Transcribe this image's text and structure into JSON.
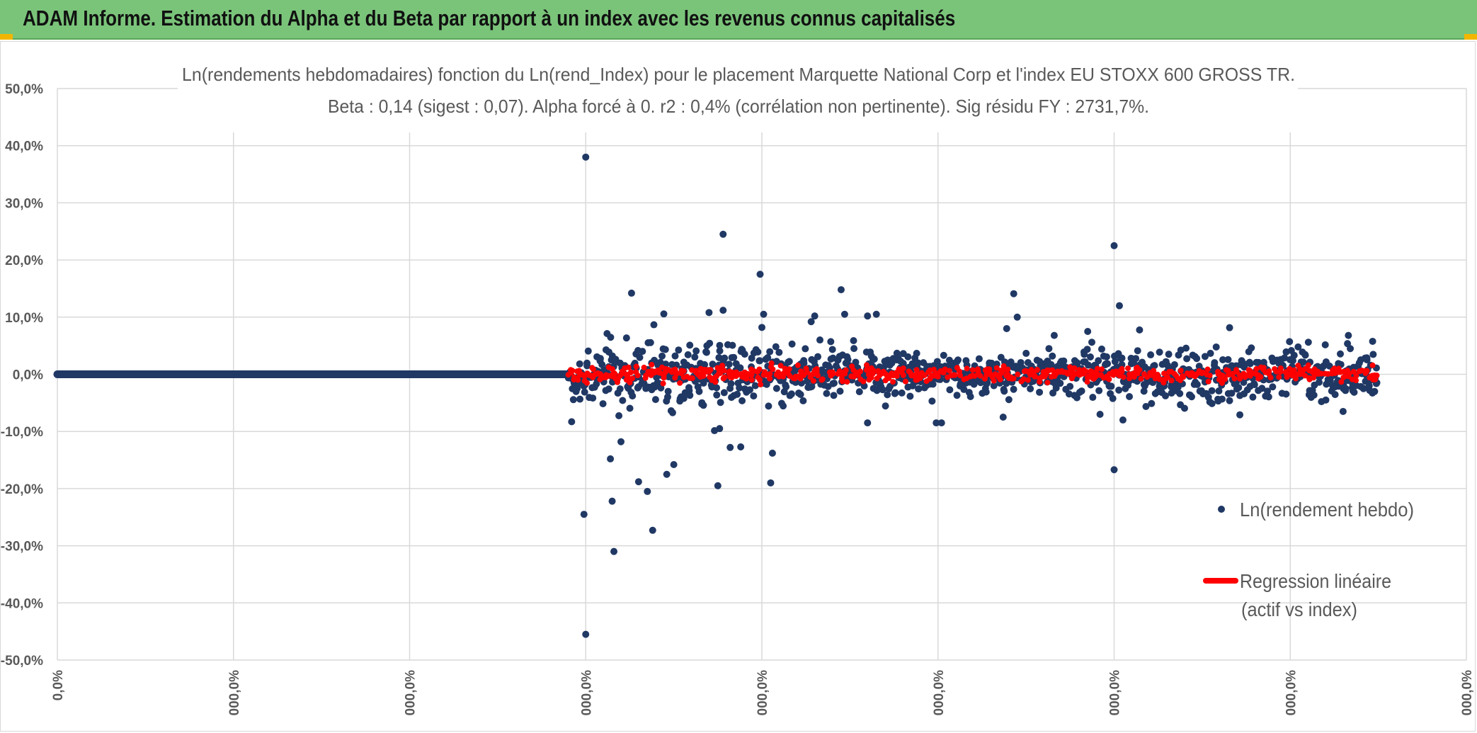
{
  "header": {
    "title": "ADAM Informe. Estimation du Alpha et du Beta par rapport à un index avec les revenus connus capitalisés"
  },
  "colors": {
    "header_bg": "#7ac47a",
    "points": "#203864",
    "regression": "#ff0000",
    "grid": "#d9d9d9",
    "text": "#595959",
    "corner": "#f2b600"
  },
  "chart_data": {
    "type": "scatter",
    "title": "Ln(rendements hebdomadaires) fonction du Ln(rend_Index) pour le placement Marquette National Corp et l'index EU STOXX 600 GROSS TR.",
    "subtitle": "Beta : 0,14 (sigest : 0,07). Alpha forcé à 0. r2 : 0,4% (corrélation non pertinente). Sig résidu FY : 2731,7%.",
    "xlabel": "",
    "ylabel": "",
    "y_ticks": [
      "50,0%",
      "40,0%",
      "30,0%",
      "20,0%",
      "10,0%",
      "0,0%",
      "-10,0%",
      "-20,0%",
      "-30,0%",
      "-40,0%",
      "-50,0%"
    ],
    "ylim": [
      -0.5,
      0.5
    ],
    "x_ticks": [
      "0,0%",
      "000,0%",
      "000,0%",
      "000,0%",
      "000,0%",
      "000,0%",
      "000,0%",
      "000,0%",
      "000,0%"
    ],
    "xlim": [
      0,
      8
    ],
    "grid": true,
    "legend_position": "right",
    "series": [
      {
        "name": "Ln(rendement hebdo)",
        "kind": "scatter",
        "baseline_segment": {
          "x_start": 0,
          "x_end": 2.9,
          "y": 0.0
        },
        "scatter_x_range": [
          2.9,
          7.5
        ],
        "noise_level": 0.02,
        "outliers": [
          {
            "x": 3.0,
            "y": 0.38
          },
          {
            "x": 3.0,
            "y": -0.455
          },
          {
            "x": 2.99,
            "y": -0.245
          },
          {
            "x": 2.92,
            "y": -0.083
          },
          {
            "x": 3.16,
            "y": -0.31
          },
          {
            "x": 3.15,
            "y": -0.222
          },
          {
            "x": 3.14,
            "y": -0.148
          },
          {
            "x": 3.2,
            "y": -0.118
          },
          {
            "x": 3.3,
            "y": -0.188
          },
          {
            "x": 3.35,
            "y": -0.205
          },
          {
            "x": 3.38,
            "y": -0.273
          },
          {
            "x": 3.46,
            "y": -0.175
          },
          {
            "x": 3.5,
            "y": -0.158
          },
          {
            "x": 3.26,
            "y": 0.142
          },
          {
            "x": 3.78,
            "y": 0.245
          },
          {
            "x": 3.78,
            "y": 0.112
          },
          {
            "x": 3.99,
            "y": 0.175
          },
          {
            "x": 4.01,
            "y": 0.105
          },
          {
            "x": 4.0,
            "y": 0.082
          },
          {
            "x": 3.75,
            "y": -0.195
          },
          {
            "x": 4.05,
            "y": -0.19
          },
          {
            "x": 4.06,
            "y": -0.138
          },
          {
            "x": 3.82,
            "y": -0.128
          },
          {
            "x": 3.88,
            "y": -0.127
          },
          {
            "x": 3.76,
            "y": -0.095
          },
          {
            "x": 4.45,
            "y": 0.148
          },
          {
            "x": 4.47,
            "y": 0.105
          },
          {
            "x": 4.65,
            "y": 0.105
          },
          {
            "x": 4.6,
            "y": 0.102
          },
          {
            "x": 4.3,
            "y": 0.102
          },
          {
            "x": 4.28,
            "y": 0.092
          },
          {
            "x": 4.6,
            "y": -0.085
          },
          {
            "x": 4.99,
            "y": -0.085
          },
          {
            "x": 5.43,
            "y": 0.141
          },
          {
            "x": 5.45,
            "y": 0.1
          },
          {
            "x": 5.02,
            "y": -0.085
          },
          {
            "x": 5.39,
            "y": 0.08
          },
          {
            "x": 5.37,
            "y": -0.075
          },
          {
            "x": 6.0,
            "y": 0.225
          },
          {
            "x": 6.03,
            "y": 0.12
          },
          {
            "x": 6.0,
            "y": -0.167
          },
          {
            "x": 6.05,
            "y": -0.08
          },
          {
            "x": 5.66,
            "y": 0.068
          },
          {
            "x": 5.85,
            "y": 0.075
          },
          {
            "x": 5.92,
            "y": -0.07
          },
          {
            "x": 7.33,
            "y": 0.068
          },
          {
            "x": 7.3,
            "y": -0.065
          },
          {
            "x": 3.7,
            "y": 0.108
          }
        ]
      },
      {
        "name": "Regression linéaire (actif vs index)",
        "kind": "line",
        "slope": 0.14,
        "intercept": 0,
        "x_range": [
          2.9,
          7.5
        ]
      }
    ],
    "legend": {
      "entries": [
        "Ln(rendement hebdo)",
        "Regression linéaire",
        "(actif vs index)"
      ]
    }
  }
}
